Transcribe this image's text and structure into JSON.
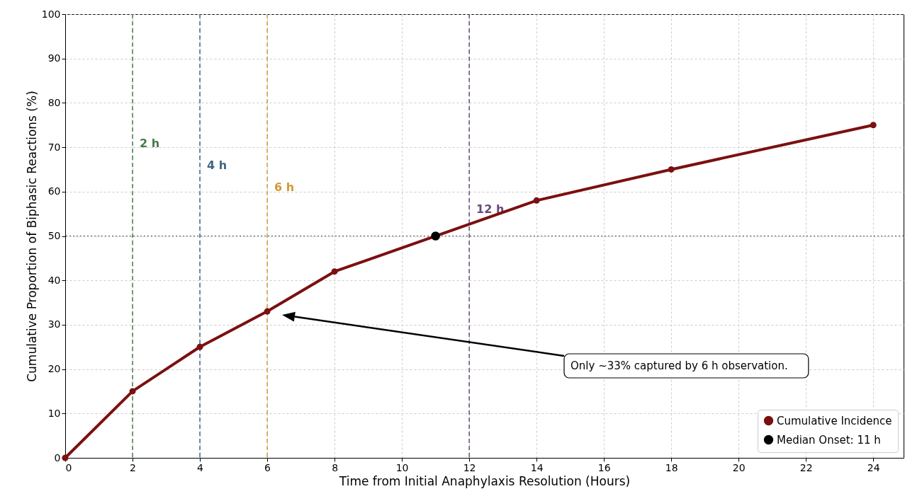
{
  "chart_data": {
    "type": "line",
    "xlabel": "Time from Initial Anaphylaxis Resolution (Hours)",
    "ylabel": "Cumulative Proportion of Biphasic Reactions (%)",
    "xlim": [
      0,
      24.9
    ],
    "xticks": [
      0,
      2,
      4,
      6,
      8,
      10,
      12,
      14,
      16,
      18,
      20,
      22,
      24
    ],
    "ylim": [
      0,
      100
    ],
    "yticks": [
      0,
      10,
      20,
      30,
      40,
      50,
      60,
      70,
      80,
      90,
      100
    ],
    "grid": true,
    "legend": "bottom right",
    "marker": "circle",
    "line_style": "solid",
    "series": [
      {
        "name": "Cumulative Incidence",
        "type": "line",
        "color": "#7b1010",
        "x": [
          0,
          2,
          4,
          6,
          8,
          14,
          18,
          24
        ],
        "values": [
          0,
          15,
          25,
          33,
          42,
          58,
          65,
          75
        ]
      },
      {
        "name": "Median Onset: 11 h",
        "type": "scatter",
        "color": "#000000",
        "x": [
          11
        ],
        "values": [
          50
        ]
      }
    ],
    "ref_lines": [
      {
        "axis": "x",
        "value": 2,
        "label": "2 h",
        "color": "#4a7a4a",
        "line_style": "dashed"
      },
      {
        "axis": "x",
        "value": 4,
        "label": "4 h",
        "color": "#3f6584",
        "line_style": "dashed"
      },
      {
        "axis": "x",
        "value": 6,
        "label": "6 h",
        "color": "#d09a38",
        "line_style": "dashed"
      },
      {
        "axis": "x",
        "value": 12,
        "label": "12 h",
        "color": "#6a4a78",
        "line_style": "dashed"
      },
      {
        "axis": "y",
        "value": 50,
        "color": "#808080",
        "line_style": "dotted"
      }
    ],
    "annotations": [
      "Only ~33% captured by 6 h observation."
    ]
  }
}
